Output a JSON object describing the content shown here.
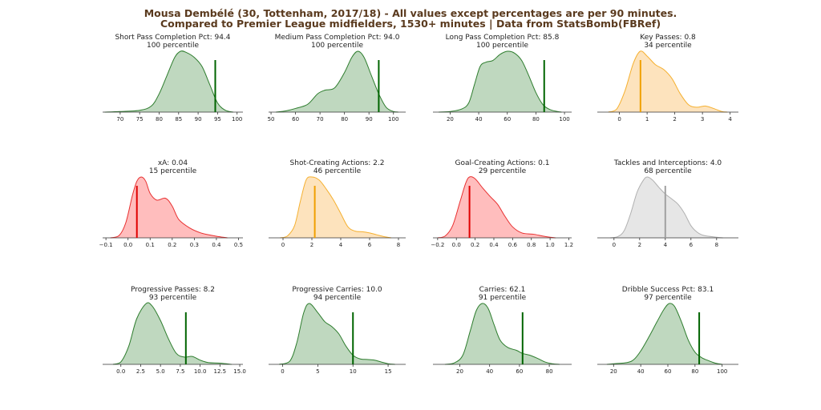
{
  "chart_data": {
    "type": "area",
    "title": "Mousa Dembélé (30, Tottenham, 2017/18) - All values except percentages are per 90 minutes.",
    "subtitle": "Compared to Premier League midfielders, 1530+ minutes | Data from StatsBomb(FBRef)",
    "colors": {
      "green_fill": "#bfd8bf",
      "green_line": "#2e7d2e",
      "green_marker": "#006400",
      "orange_fill": "#fde3bd",
      "orange_line": "#f5b030",
      "orange_marker": "#f0a000",
      "red_fill": "#ffbdbd",
      "red_line": "#e83030",
      "red_marker": "#e00000",
      "gray_fill": "#e6e6e6",
      "gray_line": "#b0b0b0",
      "gray_marker": "#a0a0a0",
      "title": "#5a3a1e"
    },
    "panels": [
      {
        "label": "Short Pass Completion Pct: 94.4",
        "percentile": "100 percentile",
        "value": 94.4,
        "color": "green",
        "xlim": [
          65.5,
          101.5
        ],
        "ticks": [
          70,
          75,
          80,
          85,
          90,
          95,
          100
        ],
        "density": [
          [
            66,
            0
          ],
          [
            70,
            0.01
          ],
          [
            75,
            0.03
          ],
          [
            78,
            0.1
          ],
          [
            80,
            0.3
          ],
          [
            82,
            0.6
          ],
          [
            84,
            0.9
          ],
          [
            85.5,
            1.0
          ],
          [
            87,
            0.98
          ],
          [
            89,
            0.9
          ],
          [
            91,
            0.75
          ],
          [
            93,
            0.45
          ],
          [
            95,
            0.15
          ],
          [
            97,
            0.03
          ],
          [
            99,
            0
          ]
        ]
      },
      {
        "label": "Medium Pass Completion Pct: 94.0",
        "percentile": "100 percentile",
        "value": 94.0,
        "color": "green",
        "xlim": [
          49,
          105
        ],
        "ticks": [
          50,
          60,
          70,
          80,
          90,
          100
        ],
        "density": [
          [
            52,
            0
          ],
          [
            56,
            0.02
          ],
          [
            60,
            0.06
          ],
          [
            65,
            0.13
          ],
          [
            69,
            0.3
          ],
          [
            72,
            0.36
          ],
          [
            76,
            0.4
          ],
          [
            80,
            0.65
          ],
          [
            83,
            0.9
          ],
          [
            85.5,
            1.0
          ],
          [
            88,
            0.9
          ],
          [
            91,
            0.6
          ],
          [
            94,
            0.3
          ],
          [
            97,
            0.08
          ],
          [
            100,
            0.01
          ],
          [
            102,
            0
          ]
        ]
      },
      {
        "label": "Long Pass Completion Pct: 85.8",
        "percentile": "100 percentile",
        "value": 85.8,
        "color": "green",
        "xlim": [
          8,
          105
        ],
        "ticks": [
          20,
          40,
          60,
          80,
          100
        ],
        "density": [
          [
            12,
            0
          ],
          [
            20,
            0.01
          ],
          [
            28,
            0.05
          ],
          [
            33,
            0.15
          ],
          [
            37,
            0.45
          ],
          [
            41,
            0.75
          ],
          [
            45,
            0.82
          ],
          [
            50,
            0.85
          ],
          [
            55,
            0.95
          ],
          [
            60,
            1.0
          ],
          [
            65,
            0.97
          ],
          [
            70,
            0.85
          ],
          [
            75,
            0.6
          ],
          [
            80,
            0.32
          ],
          [
            85,
            0.12
          ],
          [
            90,
            0.04
          ],
          [
            95,
            0.01
          ],
          [
            98,
            0
          ]
        ]
      },
      {
        "label": "Key Passes: 0.8",
        "percentile": "34 percentile",
        "value": 0.76,
        "color": "orange",
        "xlim": [
          -0.8,
          4.3
        ],
        "ticks": [
          0,
          1,
          2,
          3,
          4
        ],
        "density": [
          [
            -0.4,
            0
          ],
          [
            -0.1,
            0.05
          ],
          [
            0.2,
            0.35
          ],
          [
            0.5,
            0.8
          ],
          [
            0.75,
            1.0
          ],
          [
            1.0,
            0.92
          ],
          [
            1.3,
            0.78
          ],
          [
            1.6,
            0.7
          ],
          [
            1.9,
            0.55
          ],
          [
            2.2,
            0.3
          ],
          [
            2.5,
            0.12
          ],
          [
            2.8,
            0.08
          ],
          [
            3.1,
            0.1
          ],
          [
            3.4,
            0.06
          ],
          [
            3.7,
            0.01
          ],
          [
            3.9,
            0
          ]
        ]
      },
      {
        "label": "xA: 0.04",
        "percentile": "15 percentile",
        "value": 0.04,
        "color": "red",
        "xlim": [
          -0.115,
          0.52
        ],
        "ticks": [
          -0.1,
          0.0,
          0.1,
          0.2,
          0.3,
          0.4,
          0.5
        ],
        "density": [
          [
            -0.08,
            0
          ],
          [
            -0.04,
            0.04
          ],
          [
            -0.01,
            0.25
          ],
          [
            0.02,
            0.7
          ],
          [
            0.04,
            0.93
          ],
          [
            0.06,
            1.0
          ],
          [
            0.08,
            0.93
          ],
          [
            0.1,
            0.73
          ],
          [
            0.13,
            0.62
          ],
          [
            0.17,
            0.65
          ],
          [
            0.2,
            0.52
          ],
          [
            0.23,
            0.3
          ],
          [
            0.28,
            0.16
          ],
          [
            0.33,
            0.08
          ],
          [
            0.38,
            0.04
          ],
          [
            0.42,
            0.015
          ],
          [
            0.45,
            0
          ]
        ]
      },
      {
        "label": "Shot-Creating Actions: 2.2",
        "percentile": "46 percentile",
        "value": 2.2,
        "color": "orange",
        "xlim": [
          -1.0,
          8.5
        ],
        "ticks": [
          0,
          2,
          4,
          6,
          8
        ],
        "density": [
          [
            -0.2,
            0
          ],
          [
            0.3,
            0.03
          ],
          [
            0.8,
            0.2
          ],
          [
            1.2,
            0.6
          ],
          [
            1.6,
            0.95
          ],
          [
            2.0,
            1.0
          ],
          [
            2.5,
            0.95
          ],
          [
            3.0,
            0.8
          ],
          [
            3.5,
            0.62
          ],
          [
            4.0,
            0.4
          ],
          [
            4.5,
            0.18
          ],
          [
            5.0,
            0.11
          ],
          [
            5.5,
            0.1
          ],
          [
            6.0,
            0.08
          ],
          [
            6.5,
            0.05
          ],
          [
            7.0,
            0.02
          ],
          [
            7.5,
            0
          ]
        ]
      },
      {
        "label": "Goal-Creating Actions: 0.1",
        "percentile": "29 percentile",
        "value": 0.14,
        "color": "red",
        "xlim": [
          -0.25,
          1.23
        ],
        "ticks": [
          -0.2,
          0.0,
          0.2,
          0.4,
          0.6,
          0.8,
          1.0,
          1.2
        ],
        "density": [
          [
            -0.2,
            0
          ],
          [
            -0.12,
            0.03
          ],
          [
            -0.04,
            0.2
          ],
          [
            0.04,
            0.6
          ],
          [
            0.1,
            0.9
          ],
          [
            0.14,
            1.0
          ],
          [
            0.2,
            0.97
          ],
          [
            0.28,
            0.82
          ],
          [
            0.36,
            0.68
          ],
          [
            0.44,
            0.55
          ],
          [
            0.52,
            0.35
          ],
          [
            0.6,
            0.18
          ],
          [
            0.7,
            0.08
          ],
          [
            0.82,
            0.06
          ],
          [
            0.92,
            0.03
          ],
          [
            1.0,
            0.01
          ],
          [
            1.06,
            0
          ]
        ]
      },
      {
        "label": "Tackles and Interceptions: 4.0",
        "percentile": "68 percentile",
        "value": 4.0,
        "color": "gray",
        "xlim": [
          -1.3,
          9.7
        ],
        "ticks": [
          0,
          2,
          4,
          6,
          8
        ],
        "density": [
          [
            -0.3,
            0
          ],
          [
            0.3,
            0.02
          ],
          [
            0.8,
            0.12
          ],
          [
            1.3,
            0.4
          ],
          [
            1.8,
            0.75
          ],
          [
            2.3,
            0.95
          ],
          [
            2.6,
            1.0
          ],
          [
            3.0,
            0.95
          ],
          [
            3.5,
            0.83
          ],
          [
            4.0,
            0.72
          ],
          [
            4.5,
            0.64
          ],
          [
            5.0,
            0.55
          ],
          [
            5.5,
            0.4
          ],
          [
            6.0,
            0.2
          ],
          [
            6.5,
            0.09
          ],
          [
            7.0,
            0.04
          ],
          [
            8.0,
            0.01
          ],
          [
            8.5,
            0
          ]
        ]
      },
      {
        "label": "Progressive Passes: 8.2",
        "percentile": "93 percentile",
        "value": 8.2,
        "color": "green",
        "xlim": [
          -2.3,
          15.4
        ],
        "ticks": [
          0.0,
          2.5,
          5.0,
          7.5,
          10.0,
          12.5,
          15.0
        ],
        "density": [
          [
            -1,
            0
          ],
          [
            0,
            0.04
          ],
          [
            1,
            0.3
          ],
          [
            2,
            0.75
          ],
          [
            3.2,
            1.0
          ],
          [
            4,
            0.95
          ],
          [
            5,
            0.72
          ],
          [
            6,
            0.42
          ],
          [
            7,
            0.18
          ],
          [
            8,
            0.12
          ],
          [
            9,
            0.13
          ],
          [
            10,
            0.07
          ],
          [
            11,
            0.03
          ],
          [
            12.5,
            0.02
          ],
          [
            14,
            0
          ]
        ]
      },
      {
        "label": "Progressive Carries: 10.0",
        "percentile": "94 percentile",
        "value": 10.0,
        "color": "green",
        "xlim": [
          -2.0,
          17.5
        ],
        "ticks": [
          0,
          5,
          10,
          15
        ],
        "density": [
          [
            -0.5,
            0
          ],
          [
            1,
            0.05
          ],
          [
            2,
            0.35
          ],
          [
            3,
            0.85
          ],
          [
            3.8,
            1.0
          ],
          [
            5,
            0.85
          ],
          [
            6,
            0.7
          ],
          [
            7,
            0.62
          ],
          [
            8,
            0.5
          ],
          [
            9,
            0.3
          ],
          [
            10,
            0.15
          ],
          [
            11,
            0.09
          ],
          [
            12,
            0.08
          ],
          [
            13,
            0.07
          ],
          [
            14,
            0.04
          ],
          [
            15,
            0.01
          ],
          [
            16,
            0
          ]
        ]
      },
      {
        "label": "Carries: 62.1",
        "percentile": "91 percentile",
        "value": 62.1,
        "color": "green",
        "xlim": [
          2,
          95
        ],
        "ticks": [
          20,
          40,
          60,
          80
        ],
        "density": [
          [
            10,
            0
          ],
          [
            16,
            0.02
          ],
          [
            22,
            0.15
          ],
          [
            27,
            0.55
          ],
          [
            31,
            0.88
          ],
          [
            35,
            1.0
          ],
          [
            39,
            0.92
          ],
          [
            43,
            0.65
          ],
          [
            47,
            0.4
          ],
          [
            52,
            0.28
          ],
          [
            58,
            0.23
          ],
          [
            62,
            0.18
          ],
          [
            67,
            0.15
          ],
          [
            72,
            0.1
          ],
          [
            77,
            0.04
          ],
          [
            82,
            0.01
          ],
          [
            87,
            0
          ]
        ]
      },
      {
        "label": "Dribble Success Pct: 83.1",
        "percentile": "97 percentile",
        "value": 83.1,
        "color": "green",
        "xlim": [
          8,
          112
        ],
        "ticks": [
          20,
          40,
          60,
          80,
          100
        ],
        "density": [
          [
            15,
            0
          ],
          [
            20,
            0.01
          ],
          [
            30,
            0.03
          ],
          [
            35,
            0.08
          ],
          [
            40,
            0.22
          ],
          [
            46,
            0.45
          ],
          [
            52,
            0.7
          ],
          [
            57,
            0.9
          ],
          [
            61,
            1.0
          ],
          [
            65,
            0.95
          ],
          [
            70,
            0.7
          ],
          [
            75,
            0.4
          ],
          [
            80,
            0.2
          ],
          [
            85,
            0.11
          ],
          [
            90,
            0.06
          ],
          [
            95,
            0.02
          ],
          [
            100,
            0
          ]
        ]
      }
    ]
  }
}
